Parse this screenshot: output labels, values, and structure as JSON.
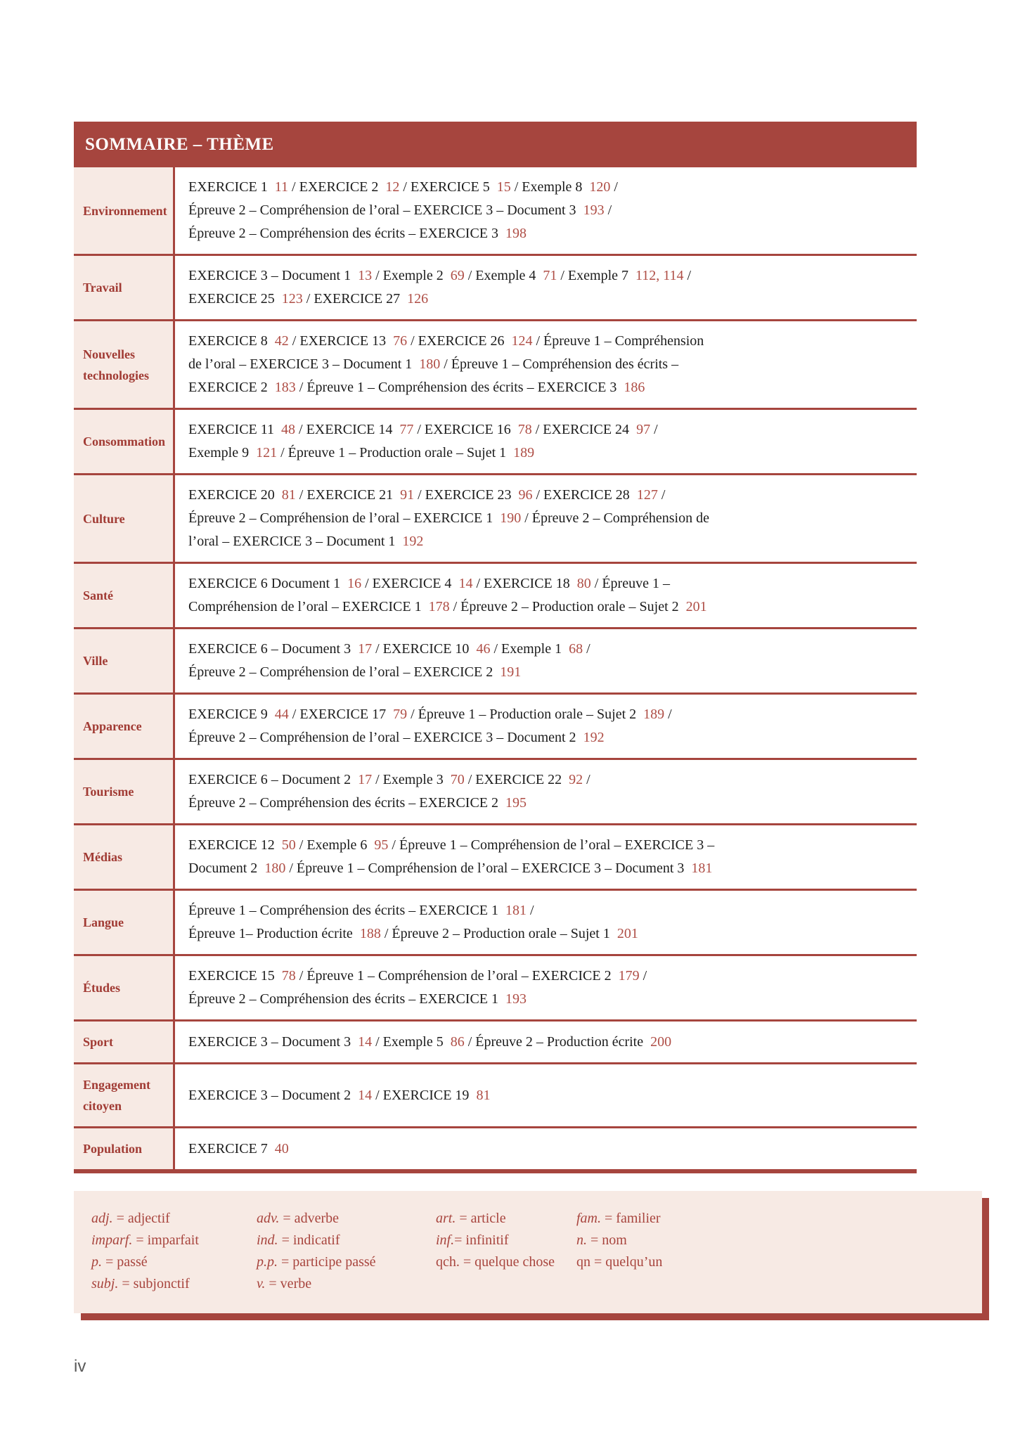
{
  "page": {
    "footer_page_number": "iv"
  },
  "colors": {
    "header_bg": "#A6453E",
    "border": "#A6453E",
    "theme_bg": "#F7EAE4",
    "theme_text": "#A13B34",
    "page_number": "#AF4E46",
    "body_text": "#1C1C1C",
    "legend_bg": "#F7EAE4",
    "legend_text": "#A8453E",
    "footer_text": "#5A5A5A"
  },
  "table": {
    "title": "SOMMAIRE – THÈME",
    "rows": [
      {
        "theme": "Environnement",
        "lines": [
          "EXERCICE 1 {11} / EXERCICE 2 {12} / EXERCICE 5 {15} / Exemple 8 {120} /",
          "Épreuve 2 – Compréhension de l’oral – EXERCICE 3 – Document 3 {193} /",
          "Épreuve 2 – Compréhension des écrits – EXERCICE 3 {198}"
        ]
      },
      {
        "theme": "Travail",
        "lines": [
          "EXERCICE 3 – Document 1 {13} / Exemple 2 {69} / Exemple 4 {71} / Exemple 7 {112, 114} /",
          "EXERCICE 25 {123} / EXERCICE 27 {126}"
        ]
      },
      {
        "theme": "Nouvelles technologies",
        "lines": [
          "EXERCICE 8 {42} / EXERCICE 13 {76} / EXERCICE 26 {124} / Épreuve 1 – Compréhension",
          "de l’oral – EXERCICE 3 – Document 1 {180} / Épreuve 1 – Compréhension des écrits –",
          "EXERCICE 2 {183} / Épreuve 1 – Compréhension des écrits – EXERCICE 3 {186}"
        ]
      },
      {
        "theme": "Consommation",
        "lines": [
          "EXERCICE 11 {48} / EXERCICE 14 {77} / EXERCICE 16 {78} / EXERCICE 24 {97} /",
          "Exemple 9 {121} / Épreuve 1 – Production orale – Sujet 1 {189}"
        ]
      },
      {
        "theme": "Culture",
        "lines": [
          "EXERCICE 20 {81} / EXERCICE 21 {91} / EXERCICE 23 {96} / EXERCICE 28 {127} /",
          "Épreuve 2 – Compréhension de l’oral – EXERCICE 1 {190} / Épreuve 2 – Compréhension de",
          "l’oral – EXERCICE 3 – Document 1 {192}"
        ]
      },
      {
        "theme": "Santé",
        "lines": [
          "EXERCICE 6 Document 1 {16} / EXERCICE 4 {14} / EXERCICE 18 {80} / Épreuve 1 –",
          "Compréhension de l’oral – EXERCICE 1 {178} / Épreuve 2 – Production orale – Sujet 2 {201}"
        ]
      },
      {
        "theme": "Ville",
        "lines": [
          "EXERCICE 6 – Document 3 {17} / EXERCICE 10 {46} / Exemple 1 {68} /",
          "Épreuve 2 – Compréhension de l’oral – EXERCICE 2 {191}"
        ]
      },
      {
        "theme": "Apparence",
        "lines": [
          "EXERCICE 9 {44} / EXERCICE 17 {79} / Épreuve 1 – Production orale – Sujet 2 {189} /",
          "Épreuve 2 – Compréhension de l’oral – EXERCICE 3 – Document 2 {192}"
        ]
      },
      {
        "theme": "Tourisme",
        "lines": [
          "EXERCICE 6 – Document 2 {17} / Exemple 3 {70} / EXERCICE 22 {92} /",
          "Épreuve 2 – Compréhension des écrits – EXERCICE 2 {195}"
        ]
      },
      {
        "theme": "Médias",
        "lines": [
          "EXERCICE 12 {50} / Exemple 6 {95} / Épreuve 1 – Compréhension de l’oral – EXERCICE 3 –",
          "Document 2 {180} / Épreuve 1 – Compréhension de l’oral – EXERCICE 3 – Document 3 {181}"
        ]
      },
      {
        "theme": "Langue",
        "lines": [
          "Épreuve 1 – Compréhension des écrits – EXERCICE 1 {181} /",
          "Épreuve 1– Production écrite {188} / Épreuve 2 – Production orale – Sujet 1 {201}"
        ]
      },
      {
        "theme": "Études",
        "lines": [
          "EXERCICE 15 {78} / Épreuve 1 – Compréhension de l’oral – EXERCICE 2 {179} /",
          "Épreuve 2 – Compréhension des écrits – EXERCICE 1 {193}"
        ]
      },
      {
        "theme": "Sport",
        "lines": [
          "EXERCICE 3 – Document 3 {14} / Exemple 5 {86} / Épreuve 2 – Production écrite {200}"
        ]
      },
      {
        "theme": "Engagement citoyen",
        "lines": [
          "EXERCICE 3 – Document 2 {14} / EXERCICE 19 {81}"
        ]
      },
      {
        "theme": "Population",
        "lines": [
          "EXERCICE 7 {40}"
        ]
      }
    ]
  },
  "legend": {
    "columns": [
      {
        "items": [
          {
            "abbr": "adj.",
            "italic": true,
            "sep": " = ",
            "meaning": "adjectif"
          },
          {
            "abbr": "imparf.",
            "italic": true,
            "sep": " = ",
            "meaning": "imparfait"
          },
          {
            "abbr": "p.",
            "italic": true,
            "sep": " = ",
            "meaning": "passé"
          },
          {
            "abbr": "subj.",
            "italic": true,
            "sep": " = ",
            "meaning": "subjonctif"
          }
        ]
      },
      {
        "items": [
          {
            "abbr": "adv.",
            "italic": true,
            "sep": " = ",
            "meaning": "adverbe"
          },
          {
            "abbr": "ind.",
            "italic": true,
            "sep": " = ",
            "meaning": "indicatif"
          },
          {
            "abbr": "p.p.",
            "italic": true,
            "sep": " = ",
            "meaning": "participe passé"
          },
          {
            "abbr": "v.",
            "italic": true,
            "sep": " = ",
            "meaning": "verbe"
          }
        ]
      },
      {
        "items": [
          {
            "abbr": "art.",
            "italic": true,
            "sep": " = ",
            "meaning": "article"
          },
          {
            "abbr": "inf.",
            "italic": true,
            "sep": "= ",
            "meaning": "infinitif"
          },
          {
            "abbr": "qch.",
            "italic": false,
            "sep": " = ",
            "meaning": "quelque chose"
          }
        ]
      },
      {
        "items": [
          {
            "abbr": "fam.",
            "italic": true,
            "sep": " = ",
            "meaning": "familier"
          },
          {
            "abbr": "n.",
            "italic": true,
            "sep": " = ",
            "meaning": "nom"
          },
          {
            "abbr": "qn",
            "italic": false,
            "sep": " = ",
            "meaning": "quelqu’un"
          }
        ]
      }
    ]
  }
}
